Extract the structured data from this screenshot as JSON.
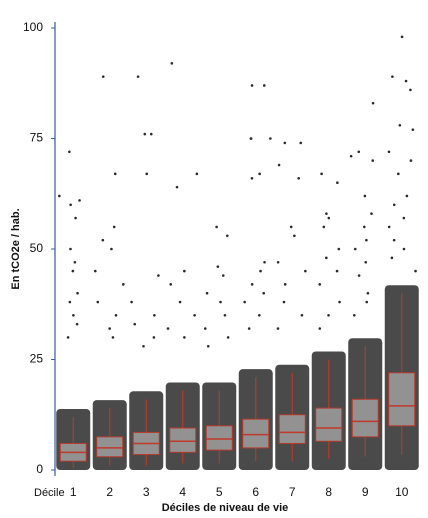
{
  "chart_data": {
    "type": "box",
    "y_label": "En tCO2e / hab.",
    "x_label": "Déciles de niveau de vie",
    "x_prefix": "Décile",
    "categories": [
      "1",
      "2",
      "3",
      "4",
      "5",
      "6",
      "7",
      "8",
      "9",
      "10"
    ],
    "ylim": [
      0,
      100
    ],
    "yticks": [
      0,
      25,
      50,
      75,
      100
    ],
    "box_color": "#c0392b",
    "box_fill": "#9a9a9a",
    "point_color": "#2a2a2a",
    "axis_color": "#3b5ba5",
    "boxes": [
      {
        "whisker_low": 0.5,
        "q1": 2,
        "median": 4,
        "q3": 6,
        "whisker_high": 12
      },
      {
        "whisker_low": 1,
        "q1": 3,
        "median": 5,
        "q3": 7.5,
        "whisker_high": 14
      },
      {
        "whisker_low": 1,
        "q1": 3.5,
        "median": 6,
        "q3": 8.5,
        "whisker_high": 16
      },
      {
        "whisker_low": 1.5,
        "q1": 4,
        "median": 6.5,
        "q3": 9.5,
        "whisker_high": 18
      },
      {
        "whisker_low": 1.5,
        "q1": 4.5,
        "median": 7,
        "q3": 10,
        "whisker_high": 18
      },
      {
        "whisker_low": 2,
        "q1": 5,
        "median": 8,
        "q3": 11.5,
        "whisker_high": 21
      },
      {
        "whisker_low": 2,
        "q1": 6,
        "median": 8.5,
        "q3": 12.5,
        "whisker_high": 22
      },
      {
        "whisker_low": 2.5,
        "q1": 6.5,
        "median": 9.5,
        "q3": 14,
        "whisker_high": 25
      },
      {
        "whisker_low": 3,
        "q1": 7.5,
        "median": 11,
        "q3": 16,
        "whisker_high": 28
      },
      {
        "whisker_low": 3.5,
        "q1": 10,
        "median": 14.5,
        "q3": 22,
        "whisker_high": 40
      }
    ],
    "points": [
      [
        72,
        62,
        61,
        60,
        57,
        50,
        47,
        45,
        40,
        38,
        35,
        33,
        30
      ],
      [
        89,
        67,
        55,
        52,
        50,
        45,
        42,
        38,
        35,
        32,
        30
      ],
      [
        89,
        76,
        76,
        67,
        44,
        38,
        35,
        33,
        30,
        28
      ],
      [
        92,
        67,
        64,
        45,
        42,
        38,
        35,
        32,
        30
      ],
      [
        55,
        53,
        46,
        44,
        40,
        38,
        35,
        32,
        30,
        28
      ],
      [
        87,
        87,
        75,
        75,
        75,
        67,
        66,
        47,
        45,
        42,
        40,
        38,
        35,
        32
      ],
      [
        74,
        74,
        69,
        66,
        55,
        53,
        47,
        45,
        42,
        38,
        35,
        32
      ],
      [
        67,
        65,
        58,
        57,
        55,
        50,
        48,
        45,
        42,
        38,
        35,
        32
      ],
      [
        83,
        72,
        71,
        70,
        62,
        58,
        55,
        52,
        50,
        47,
        44,
        40,
        38,
        35
      ],
      [
        98,
        89,
        88,
        86,
        78,
        77,
        72,
        70,
        67,
        62,
        60,
        57,
        55,
        52,
        50,
        48,
        45
      ]
    ]
  }
}
